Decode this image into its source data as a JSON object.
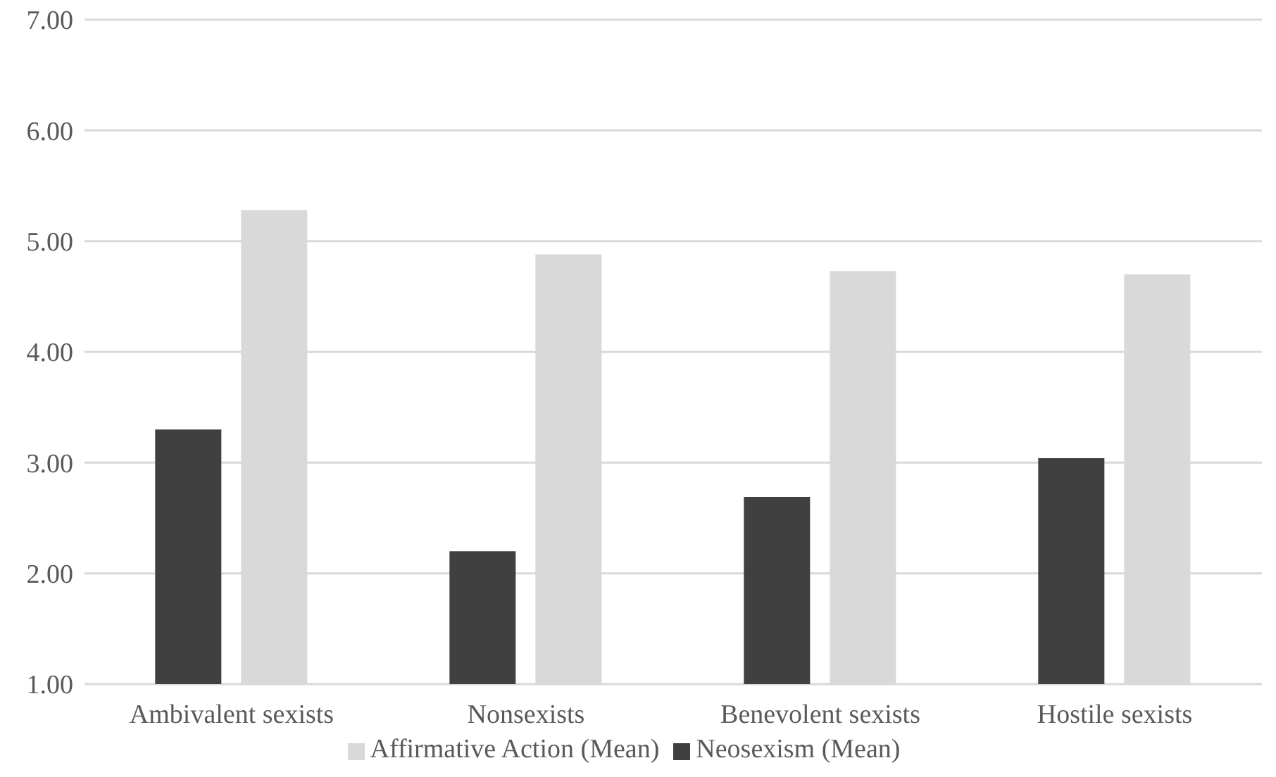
{
  "chart_data": {
    "type": "bar",
    "categories": [
      "Ambivalent sexists",
      "Nonsexists",
      "Benevolent sexists",
      "Hostile sexists"
    ],
    "series": [
      {
        "name": "Neosexism (Mean)",
        "color": "#404040",
        "values": [
          3.3,
          2.2,
          2.69,
          3.04
        ]
      },
      {
        "name": "Affirmative Action (Mean)",
        "color": "#d9d9d9",
        "values": [
          5.28,
          4.88,
          4.73,
          4.7
        ]
      }
    ],
    "ylim": [
      1,
      7
    ],
    "yticks": [
      {
        "value": 1,
        "label": "1.00"
      },
      {
        "value": 2,
        "label": "2.00"
      },
      {
        "value": 3,
        "label": "3.00"
      },
      {
        "value": 4,
        "label": "4.00"
      },
      {
        "value": 5,
        "label": "5.00"
      },
      {
        "value": 6,
        "label": "6.00"
      },
      {
        "value": 7,
        "label": "7.00"
      }
    ],
    "grid": "y",
    "legend": "bottom"
  }
}
